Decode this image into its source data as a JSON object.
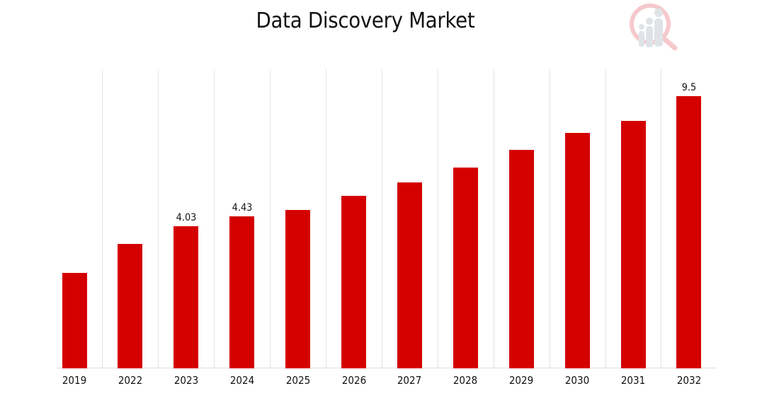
{
  "chart_data": {
    "type": "bar",
    "title": "Data Discovery Market",
    "xlabel": "",
    "ylabel": "",
    "categories": [
      "2019",
      "2022",
      "2023",
      "2024",
      "2025",
      "2026",
      "2027",
      "2028",
      "2029",
      "2030",
      "2031",
      "2032"
    ],
    "values": [
      2.05,
      3.27,
      4.03,
      4.43,
      4.7,
      5.3,
      5.86,
      6.49,
      7.23,
      7.95,
      8.45,
      9.5
    ],
    "data_labels": [
      null,
      null,
      "4.03",
      "4.43",
      null,
      null,
      null,
      null,
      null,
      null,
      null,
      "9.5"
    ],
    "bar_color": "#d40000",
    "grid": "vertical lines between categories",
    "legend": "none",
    "yaxis_visible": false
  },
  "header": {
    "title": "Data Discovery Market",
    "logo": "market-research-magnifier-logo"
  }
}
